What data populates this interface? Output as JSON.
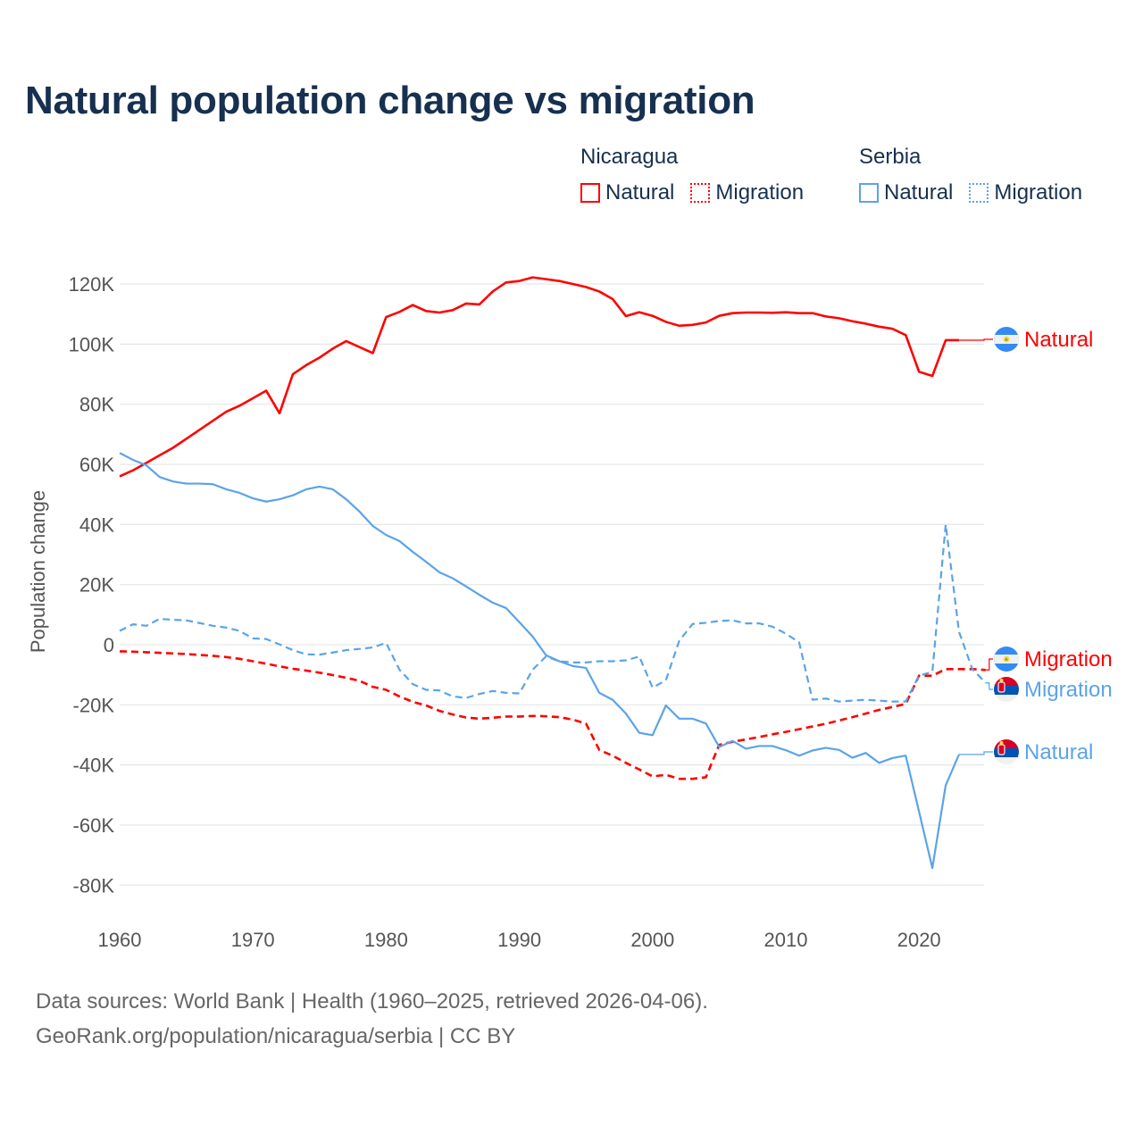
{
  "title": "Natural population change vs migration",
  "legend": [
    {
      "country": "Nicaragua",
      "items": [
        {
          "label": "Natural",
          "style": "solid",
          "color": "#ff0000"
        },
        {
          "label": "Migration",
          "style": "dotted",
          "color": "#ff0000"
        }
      ]
    },
    {
      "country": "Serbia",
      "items": [
        {
          "label": "Natural",
          "style": "solid",
          "color": "#5ba3e8"
        },
        {
          "label": "Migration",
          "style": "dotted",
          "color": "#5ba3e8"
        }
      ]
    }
  ],
  "footer": {
    "line1": "Data sources: World Bank | Health (1960–2025, retrieved 2026-04-06).",
    "line2": "GeoRank.org/population/nicaragua/serbia | CC BY"
  },
  "chart_data": {
    "type": "line",
    "title": "Natural population change vs migration",
    "xlabel": "",
    "ylabel": "Population change",
    "xlim": [
      1960,
      2025
    ],
    "ylim": [
      -90000,
      125000
    ],
    "x_ticks": [
      1960,
      1970,
      1980,
      1990,
      2000,
      2010,
      2020
    ],
    "y_ticks": [
      120000,
      100000,
      80000,
      60000,
      40000,
      20000,
      0,
      -20000,
      -40000,
      -60000,
      -80000
    ],
    "y_tick_labels": [
      "120K",
      "100K",
      "80K",
      "60K",
      "40K",
      "20K",
      "0",
      "-20K",
      "-40K",
      "-60K",
      "-80K"
    ],
    "grid": true,
    "legend_position": "top-right",
    "series": [
      {
        "name": "Nicaragua Natural",
        "end_label": "Natural",
        "country": "Nicaragua",
        "color": "#ff0000",
        "dashed": false,
        "start_year": 1960,
        "values": [
          56000,
          58000,
          60500,
          63000,
          65500,
          68500,
          71500,
          74500,
          77500,
          79500,
          82000,
          84500,
          77000,
          90000,
          93000,
          95500,
          98500,
          101000,
          99000,
          97000,
          109000,
          110700,
          113000,
          111000,
          110500,
          111300,
          113500,
          113200,
          117500,
          120500,
          121000,
          122200,
          121600,
          121000,
          120000,
          119000,
          117500,
          115000,
          109300,
          110600,
          109400,
          107400,
          106100,
          106400,
          107200,
          109400,
          110300,
          110500,
          110500,
          110400,
          110600,
          110300,
          110300,
          109200,
          108600,
          107600,
          106800,
          105800,
          105100,
          103000,
          90800,
          89400,
          101300,
          101300
        ]
      },
      {
        "name": "Nicaragua Migration",
        "end_label": "Migration",
        "country": "Nicaragua",
        "color": "#ff0000",
        "dashed": true,
        "start_year": 1960,
        "values": [
          -2200,
          -2300,
          -2500,
          -2700,
          -2900,
          -3100,
          -3400,
          -3700,
          -4100,
          -4700,
          -5500,
          -6300,
          -7200,
          -8000,
          -8600,
          -9300,
          -10100,
          -11000,
          -12000,
          -14000,
          -15000,
          -17200,
          -19000,
          -20200,
          -22000,
          -23200,
          -24200,
          -24600,
          -24300,
          -23900,
          -23900,
          -23700,
          -23800,
          -24100,
          -24900,
          -26200,
          -35000,
          -36900,
          -39300,
          -41500,
          -43800,
          -43300,
          -44600,
          -44600,
          -44100,
          -33300,
          -32300,
          -31500,
          -30700,
          -29800,
          -29000,
          -28100,
          -27200,
          -26300,
          -25200,
          -24100,
          -22900,
          -21700,
          -20700,
          -19700,
          -10300,
          -10300,
          -8100,
          -8100,
          -8100,
          -8400
        ]
      },
      {
        "name": "Serbia Natural",
        "end_label": "Natural",
        "country": "Serbia",
        "color": "#5ba3e8",
        "dashed": false,
        "start_year": 1960,
        "values": [
          63800,
          61500,
          59700,
          55800,
          54300,
          53600,
          53600,
          53400,
          51700,
          50500,
          48700,
          47600,
          48400,
          49700,
          51700,
          52600,
          51700,
          48400,
          44300,
          39500,
          36500,
          34500,
          30900,
          27600,
          24100,
          22100,
          19400,
          16600,
          14000,
          12200,
          7500,
          2700,
          -3500,
          -5500,
          -7100,
          -7700,
          -16000,
          -18300,
          -22900,
          -29300,
          -30100,
          -20200,
          -24600,
          -24600,
          -26200,
          -34000,
          -32000,
          -34600,
          -33700,
          -33700,
          -35100,
          -36900,
          -35200,
          -34300,
          -35000,
          -37600,
          -36000,
          -39300,
          -37700,
          -36900,
          -55500,
          -74300,
          -46800,
          -36500
        ]
      },
      {
        "name": "Serbia Migration",
        "end_label": "Migration",
        "country": "Serbia",
        "color": "#5ba3e8",
        "dashed": true,
        "start_year": 1960,
        "values": [
          4600,
          6800,
          6300,
          8600,
          8300,
          8100,
          7200,
          6300,
          5700,
          4600,
          2100,
          1900,
          100,
          -1800,
          -3200,
          -3300,
          -2600,
          -1800,
          -1400,
          -900,
          600,
          -8300,
          -13100,
          -15000,
          -15200,
          -17200,
          -17700,
          -16400,
          -15400,
          -16000,
          -16200,
          -8300,
          -3900,
          -5500,
          -5900,
          -5900,
          -5500,
          -5500,
          -5200,
          -3900,
          -14300,
          -11800,
          1300,
          6900,
          7300,
          7900,
          8100,
          7100,
          7100,
          6000,
          3700,
          800,
          -18300,
          -17900,
          -18900,
          -18600,
          -18300,
          -18600,
          -18900,
          -18900,
          -10300,
          -9000,
          40000,
          4300,
          -8100,
          -12700
        ]
      }
    ]
  }
}
